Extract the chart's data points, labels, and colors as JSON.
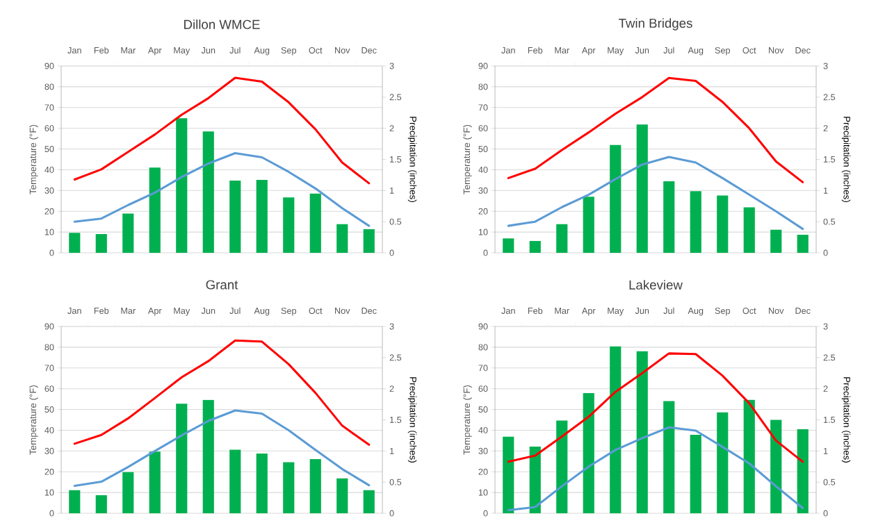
{
  "chart_data": [
    {
      "type": "bar",
      "title": "Dillon WMCE",
      "categories": [
        "Jan",
        "Feb",
        "Mar",
        "Apr",
        "May",
        "Jun",
        "Jul",
        "Aug",
        "Sep",
        "Oct",
        "Nov",
        "Dec"
      ],
      "ylabel": "Temperature (°F)",
      "y2label": "Precipitation (inches)",
      "ylim": [
        0,
        90
      ],
      "yticks": [
        0,
        10,
        20,
        30,
        40,
        50,
        60,
        70,
        80,
        90
      ],
      "y2lim": [
        0,
        3
      ],
      "y2ticks": [
        0,
        0.5,
        1,
        1.5,
        2,
        2.5,
        3
      ],
      "grid": "y",
      "series": [
        {
          "axis": "y2",
          "color": "#00b050",
          "values": [
            0.32,
            0.3,
            0.63,
            1.37,
            2.16,
            1.95,
            1.16,
            1.17,
            0.89,
            0.95,
            0.46,
            0.38
          ]
        },
        {
          "type": "line",
          "color": "#ff0000",
          "values": [
            35.3,
            40.2,
            48.6,
            57,
            66.5,
            74.5,
            84.3,
            82.5,
            72.5,
            59.5,
            43.5,
            33.5
          ]
        },
        {
          "type": "line",
          "color": "#5b9bd5",
          "values": [
            15,
            16.5,
            23,
            29,
            36.5,
            43,
            48,
            46,
            39,
            31,
            21.5,
            13
          ]
        }
      ]
    },
    {
      "type": "bar",
      "title": "Twin Bridges",
      "categories": [
        "Jan",
        "Feb",
        "Mar",
        "Apr",
        "May",
        "Jun",
        "Jul",
        "Aug",
        "Sep",
        "Oct",
        "Nov",
        "Dec"
      ],
      "ylabel": "Temperature (°F)",
      "y2label": "Precipitation (inches)",
      "ylim": [
        0,
        90
      ],
      "yticks": [
        0,
        10,
        20,
        30,
        40,
        50,
        60,
        70,
        80,
        90
      ],
      "y2lim": [
        0,
        3
      ],
      "y2ticks": [
        0,
        0.5,
        1,
        1.5,
        2,
        2.5,
        3
      ],
      "grid": "y",
      "series": [
        {
          "axis": "y2",
          "color": "#00b050",
          "values": [
            0.23,
            0.19,
            0.46,
            0.9,
            1.73,
            2.06,
            1.15,
            0.99,
            0.92,
            0.73,
            0.37,
            0.29
          ]
        },
        {
          "type": "line",
          "color": "#ff0000",
          "values": [
            36,
            40.5,
            49.5,
            58,
            67,
            75,
            84.2,
            82.8,
            72.7,
            60,
            44,
            34
          ]
        },
        {
          "type": "line",
          "color": "#5b9bd5",
          "values": [
            13,
            15,
            22,
            28,
            35.5,
            42.5,
            46.2,
            43.5,
            36,
            28,
            20,
            11.5
          ]
        }
      ]
    },
    {
      "type": "bar",
      "title": "Grant",
      "categories": [
        "Jan",
        "Feb",
        "Mar",
        "Apr",
        "May",
        "Jun",
        "Jul",
        "Aug",
        "Sep",
        "Oct",
        "Nov",
        "Dec"
      ],
      "ylabel": "Temperature (°F)",
      "y2label": "Precipitation (inches)",
      "ylim": [
        0,
        90
      ],
      "yticks": [
        0,
        10,
        20,
        30,
        40,
        50,
        60,
        70,
        80,
        90
      ],
      "y2lim": [
        0,
        3
      ],
      "y2ticks": [
        0,
        0.5,
        1,
        1.5,
        2,
        2.5,
        3
      ],
      "grid": "y",
      "series": [
        {
          "axis": "y2",
          "color": "#00b050",
          "values": [
            0.37,
            0.29,
            0.66,
            0.99,
            1.76,
            1.82,
            1.02,
            0.96,
            0.82,
            0.87,
            0.56,
            0.37
          ]
        },
        {
          "type": "line",
          "color": "#ff0000",
          "values": [
            33.5,
            37.7,
            45.7,
            55.5,
            65.5,
            73.3,
            83.2,
            82.7,
            71.8,
            58,
            42.2,
            33
          ]
        },
        {
          "type": "line",
          "color": "#5b9bd5",
          "values": [
            13.2,
            15.2,
            22.3,
            30,
            37.5,
            44.5,
            49.5,
            48,
            40,
            30.5,
            21.3,
            13.5
          ]
        }
      ]
    },
    {
      "type": "bar",
      "title": "Lakeview",
      "categories": [
        "Jan",
        "Feb",
        "Mar",
        "Apr",
        "May",
        "Jun",
        "Jul",
        "Aug",
        "Sep",
        "Oct",
        "Nov",
        "Dec"
      ],
      "ylabel": "Temperature (°F)",
      "y2label": "Precipitation (inches)",
      "ylim": [
        0,
        90
      ],
      "yticks": [
        0,
        10,
        20,
        30,
        40,
        50,
        60,
        70,
        80,
        90
      ],
      "y2lim": [
        0,
        3
      ],
      "y2ticks": [
        0,
        0.5,
        1,
        1.5,
        2,
        2.5,
        3
      ],
      "grid": "y",
      "series": [
        {
          "axis": "y2",
          "color": "#00b050",
          "values": [
            1.23,
            1.07,
            1.49,
            1.93,
            2.68,
            2.6,
            1.8,
            1.26,
            1.62,
            1.82,
            1.5,
            1.35
          ]
        },
        {
          "type": "line",
          "color": "#ff0000",
          "values": [
            24.8,
            27.8,
            37,
            46.5,
            58.5,
            67.5,
            77,
            76.7,
            66.3,
            53,
            35,
            24.8
          ]
        },
        {
          "type": "line",
          "color": "#5b9bd5",
          "values": [
            1.5,
            3,
            13,
            22.5,
            30.5,
            36.2,
            41.4,
            39.8,
            32,
            24,
            13,
            2.5
          ]
        }
      ]
    }
  ]
}
